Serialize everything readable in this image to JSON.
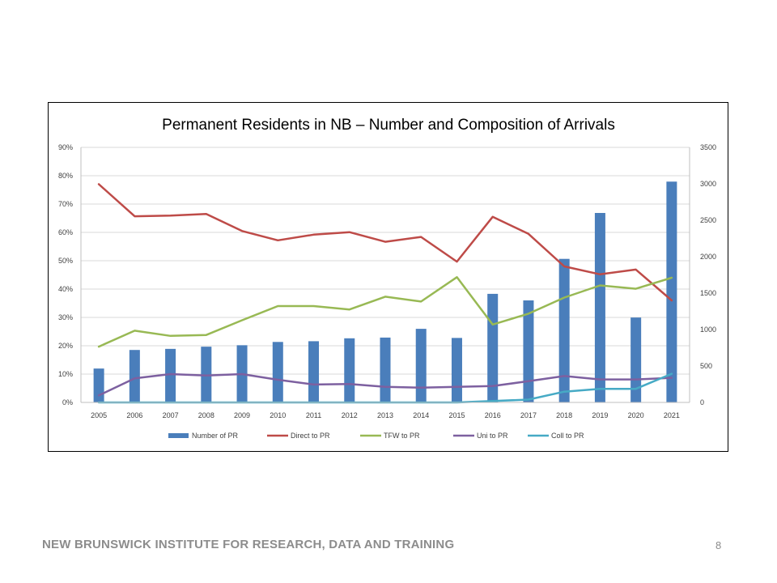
{
  "slide": {
    "footer": "NEW BRUNSWICK INSTITUTE FOR RESEARCH, DATA AND TRAINING",
    "page_number": "8"
  },
  "chart_data": {
    "type": "bar",
    "title": "Permanent Residents in NB – Number and Composition of Arrivals",
    "categories": [
      "2005",
      "2006",
      "2007",
      "2008",
      "2009",
      "2010",
      "2011",
      "2012",
      "2013",
      "2014",
      "2015",
      "2016",
      "2017",
      "2018",
      "2019",
      "2020",
      "2021"
    ],
    "y_left": {
      "range": [
        0,
        0.9
      ],
      "ticks": [
        "0%",
        "10%",
        "20%",
        "30%",
        "40%",
        "50%",
        "60%",
        "70%",
        "80%",
        "90%"
      ]
    },
    "y_right": {
      "range": [
        0,
        3500
      ],
      "ticks": [
        "0",
        "500",
        "1000",
        "1500",
        "2000",
        "2500",
        "3000",
        "3500"
      ]
    },
    "grid": true,
    "legend_position": "bottom",
    "bar_series": [
      {
        "name": "Number of PR",
        "axis": "right",
        "color": "#4a7ebb",
        "values": [
          465,
          720,
          735,
          765,
          785,
          830,
          840,
          880,
          890,
          1010,
          885,
          1490,
          1400,
          1970,
          2600,
          1165,
          3030
        ]
      }
    ],
    "line_series": [
      {
        "name": "Direct to PR",
        "axis": "left",
        "color": "#be4b48",
        "values": [
          0.77,
          0.657,
          0.659,
          0.665,
          0.605,
          0.572,
          0.592,
          0.601,
          0.567,
          0.584,
          0.497,
          0.655,
          0.595,
          0.48,
          0.452,
          0.469,
          0.36
        ]
      },
      {
        "name": "TFW to PR",
        "axis": "left",
        "color": "#98b954",
        "values": [
          0.197,
          0.253,
          0.235,
          0.238,
          0.29,
          0.34,
          0.34,
          0.328,
          0.373,
          0.356,
          0.442,
          0.275,
          0.313,
          0.37,
          0.413,
          0.401,
          0.44
        ]
      },
      {
        "name": "Uni to PR",
        "axis": "left",
        "color": "#7d60a0",
        "values": [
          0.025,
          0.085,
          0.1,
          0.095,
          0.1,
          0.08,
          0.063,
          0.065,
          0.055,
          0.052,
          0.055,
          0.058,
          0.075,
          0.093,
          0.081,
          0.081,
          0.087
        ]
      },
      {
        "name": "Coll to PR",
        "axis": "left",
        "color": "#46aac5",
        "values": [
          0,
          0,
          0,
          0,
          0,
          0,
          0,
          0,
          0,
          0,
          0,
          0.005,
          0.01,
          0.038,
          0.048,
          0.048,
          0.101
        ]
      }
    ]
  }
}
